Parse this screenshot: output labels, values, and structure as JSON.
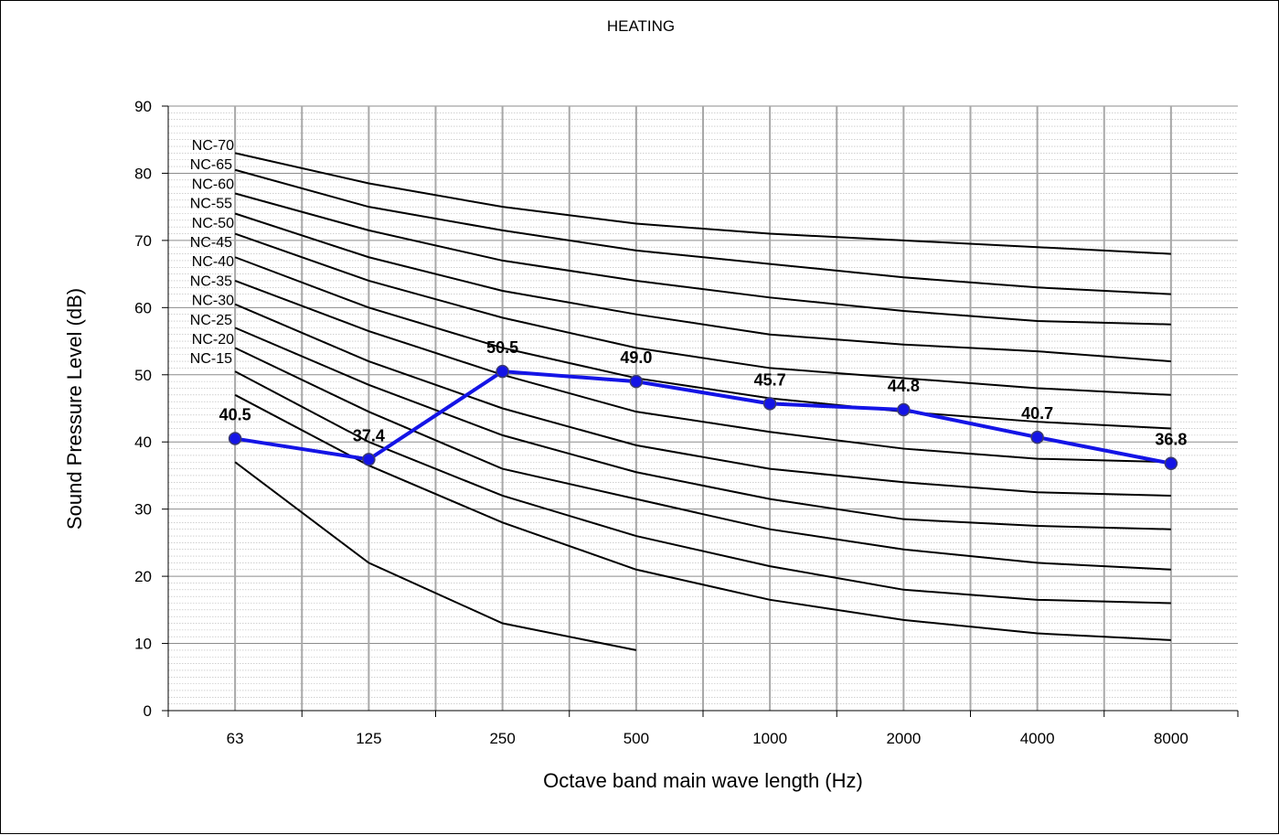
{
  "chart_data": {
    "type": "line",
    "title": "HEATING",
    "xlabel": "Octave band main wave length (Hz)",
    "ylabel": "Sound Pressure Level (dB)",
    "categories": [
      "63",
      "125",
      "250",
      "500",
      "1000",
      "2000",
      "4000",
      "8000"
    ],
    "ylim": [
      0,
      90
    ],
    "yticks": [
      0,
      10,
      20,
      30,
      40,
      50,
      60,
      70,
      80,
      90
    ],
    "grid": true,
    "legend": "none",
    "measured": {
      "color": "#1414e6",
      "values": [
        40.5,
        37.4,
        50.5,
        49.0,
        45.7,
        44.8,
        40.7,
        36.8
      ],
      "labels": [
        "40.5",
        "37.4",
        "50.5",
        "49.0",
        "45.7",
        "44.8",
        "40.7",
        "36.8"
      ]
    },
    "nc_curves": [
      {
        "name": "NC-70",
        "values": [
          83,
          78.5,
          75,
          72.5,
          71,
          70,
          69,
          68
        ]
      },
      {
        "name": "NC-65",
        "values": [
          80.5,
          75,
          71.5,
          68.5,
          66.5,
          64.5,
          63,
          62
        ]
      },
      {
        "name": "NC-60",
        "values": [
          77,
          71.5,
          67,
          64,
          61.5,
          59.5,
          58,
          57.5
        ]
      },
      {
        "name": "NC-55",
        "values": [
          74,
          67.5,
          62.5,
          59,
          56,
          54.5,
          53.5,
          52
        ]
      },
      {
        "name": "NC-50",
        "values": [
          71,
          64,
          58.5,
          54,
          51,
          49.5,
          48,
          47
        ]
      },
      {
        "name": "NC-45",
        "values": [
          67.5,
          60,
          54,
          49.5,
          46.5,
          44.5,
          43,
          42
        ]
      },
      {
        "name": "NC-40",
        "values": [
          64,
          56.5,
          50,
          44.5,
          41.5,
          39,
          37.5,
          37
        ]
      },
      {
        "name": "NC-35",
        "values": [
          60.5,
          52,
          45,
          39.5,
          36,
          34,
          32.5,
          32
        ]
      },
      {
        "name": "NC-30",
        "values": [
          57,
          48.5,
          41,
          35.5,
          31.5,
          28.5,
          27.5,
          27
        ]
      },
      {
        "name": "NC-25",
        "values": [
          54,
          44.5,
          36,
          31.5,
          27,
          24,
          22,
          21
        ]
      },
      {
        "name": "NC-20",
        "values": [
          50.5,
          40,
          32,
          26,
          21.5,
          18,
          16.5,
          16
        ]
      },
      {
        "name": "NC-15",
        "values": [
          47,
          36.5,
          28,
          21,
          16.5,
          13.5,
          11.5,
          10.5
        ]
      },
      {
        "name": "",
        "values": [
          37,
          22,
          13,
          9
        ]
      }
    ]
  }
}
